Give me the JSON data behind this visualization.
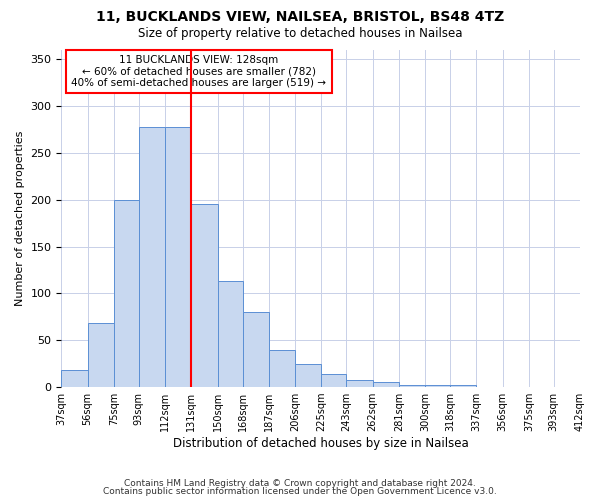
{
  "title": "11, BUCKLANDS VIEW, NAILSEA, BRISTOL, BS48 4TZ",
  "subtitle": "Size of property relative to detached houses in Nailsea",
  "xlabel": "Distribution of detached houses by size in Nailsea",
  "ylabel": "Number of detached properties",
  "bar_values": [
    18,
    68,
    200,
    278,
    278,
    195,
    113,
    80,
    40,
    25,
    14,
    8,
    5,
    2,
    2,
    2,
    0,
    0,
    0,
    0
  ],
  "bin_edges": [
    37,
    56,
    75,
    93,
    112,
    131,
    150,
    168,
    187,
    206,
    225,
    243,
    262,
    281,
    300,
    318,
    337,
    356,
    375,
    393,
    412
  ],
  "bin_labels": [
    "37sqm",
    "56sqm",
    "75sqm",
    "93sqm",
    "112sqm",
    "131sqm",
    "150sqm",
    "168sqm",
    "187sqm",
    "206sqm",
    "225sqm",
    "243sqm",
    "262sqm",
    "281sqm",
    "300sqm",
    "318sqm",
    "337sqm",
    "356sqm",
    "375sqm",
    "393sqm",
    "412sqm"
  ],
  "bar_color": "#c8d8f0",
  "bar_edge_color": "#5b8fd4",
  "vline_x": 131,
  "vline_color": "red",
  "annotation_title": "11 BUCKLANDS VIEW: 128sqm",
  "annotation_line1": "← 60% of detached houses are smaller (782)",
  "annotation_line2": "40% of semi-detached houses are larger (519) →",
  "ylim": [
    0,
    360
  ],
  "yticks": [
    0,
    50,
    100,
    150,
    200,
    250,
    300,
    350
  ],
  "footer1": "Contains HM Land Registry data © Crown copyright and database right 2024.",
  "footer2": "Contains public sector information licensed under the Open Government Licence v3.0.",
  "bg_color": "#ffffff",
  "grid_color": "#c8d0e8"
}
